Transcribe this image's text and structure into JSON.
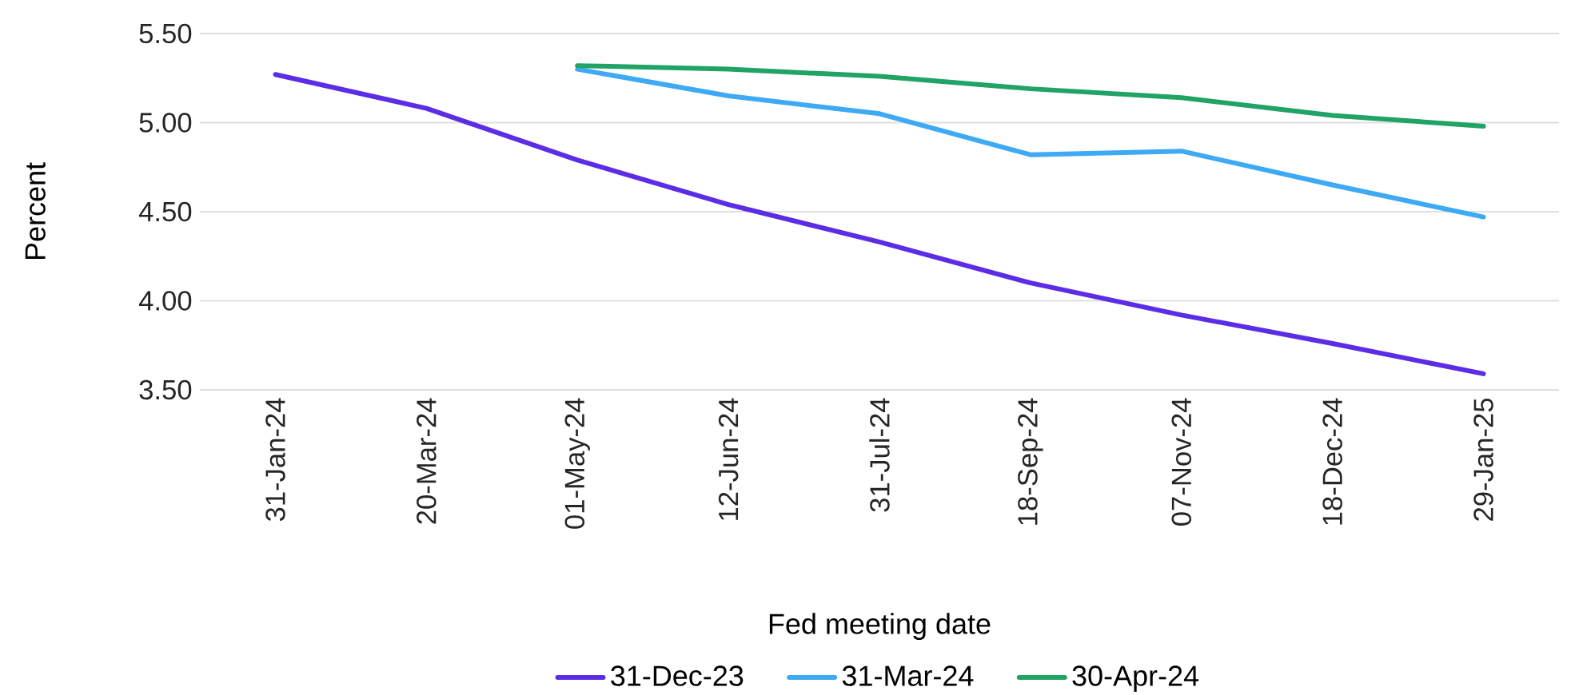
{
  "chart_data": {
    "type": "line",
    "xlabel": "Fed meeting date",
    "ylabel": "Percent",
    "categories": [
      "31-Jan-24",
      "20-Mar-24",
      "01-May-24",
      "12-Jun-24",
      "31-Jul-24",
      "18-Sep-24",
      "07-Nov-24",
      "18-Dec-24",
      "29-Jan-25"
    ],
    "series": [
      {
        "name": "31-Dec-23",
        "color": "#5b2de6",
        "values": [
          5.27,
          5.08,
          4.79,
          4.54,
          4.33,
          4.1,
          3.92,
          3.76,
          3.59
        ]
      },
      {
        "name": "31-Mar-24",
        "color": "#3ea9f5",
        "values": [
          null,
          null,
          5.3,
          5.15,
          5.05,
          4.82,
          4.84,
          4.65,
          4.47
        ]
      },
      {
        "name": "30-Apr-24",
        "color": "#21a366",
        "values": [
          null,
          null,
          5.32,
          5.3,
          5.26,
          5.19,
          5.14,
          5.04,
          4.98
        ]
      }
    ],
    "ylim": [
      3.5,
      5.5
    ],
    "yticks": [
      {
        "value": 3.5,
        "label": "3.50"
      },
      {
        "value": 4.0,
        "label": "4.00"
      },
      {
        "value": 4.5,
        "label": "4.50"
      },
      {
        "value": 5.0,
        "label": "5.00"
      },
      {
        "value": 5.5,
        "label": "5.50"
      }
    ],
    "grid": "y",
    "legend": "bottom"
  }
}
